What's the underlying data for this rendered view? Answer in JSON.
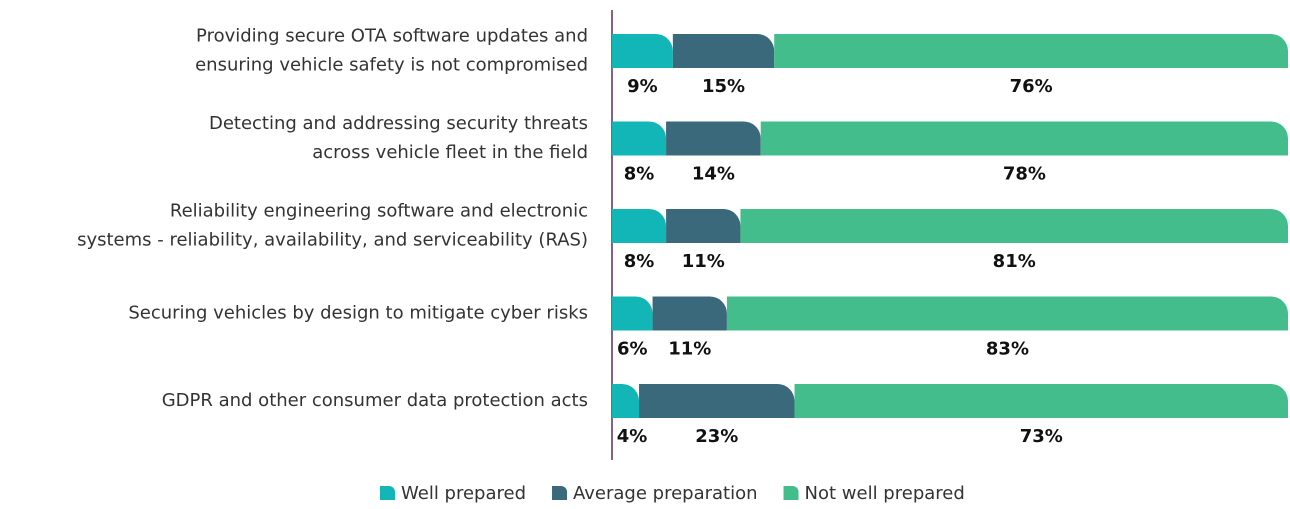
{
  "chart_data": {
    "type": "stacked_bar_horizontal",
    "categories": [
      "Providing secure OTA software updates and\nensuring vehicle safety is not compromised",
      "Detecting and addressing security threats\nacross vehicle fleet in the field",
      "Reliability engineering software and electronic\nsystems - reliability, availability, and serviceability (RAS)",
      "Securing vehicles by design to mitigate cyber risks",
      "GDPR and other consumer data protection acts"
    ],
    "series": [
      {
        "name": "Well prepared",
        "color": "#13b6b6",
        "values": [
          9,
          8,
          8,
          6,
          4
        ],
        "value_labels": [
          "9%",
          "8%",
          "8%",
          "6%",
          "4%"
        ]
      },
      {
        "name": "Average preparation",
        "color": "#3a697c",
        "values": [
          15,
          14,
          11,
          11,
          23
        ],
        "value_labels": [
          "15%",
          "14%",
          "11%",
          "11%",
          "23%"
        ]
      },
      {
        "name": "Not well prepared",
        "color": "#43bd8b",
        "values": [
          76,
          78,
          81,
          83,
          73
        ],
        "value_labels": [
          "76%",
          "78%",
          "81%",
          "83%",
          "73%"
        ]
      }
    ],
    "xlim": [
      0,
      100
    ]
  }
}
